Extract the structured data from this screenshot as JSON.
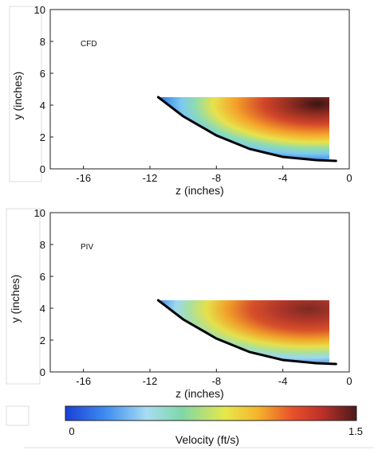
{
  "chart_data": [
    {
      "type": "heatmap",
      "panel_label": "CFD",
      "xlabel": "z (inches)",
      "ylabel": "y (inches)",
      "xlim": [
        -18,
        0
      ],
      "ylim": [
        0,
        10
      ],
      "xticks": [
        -16,
        -12,
        -8,
        -4,
        0
      ],
      "yticks": [
        0,
        2,
        4,
        6,
        8,
        10
      ],
      "grid": false,
      "wall_curve": {
        "z": [
          -11.5,
          -10.0,
          -8.0,
          -6.0,
          -4.0,
          -2.0,
          -0.8
        ],
        "y": [
          4.5,
          3.3,
          2.1,
          1.25,
          0.75,
          0.55,
          0.5
        ]
      },
      "field_top_y": 4.5,
      "field_right_z": -1.2
    },
    {
      "type": "heatmap",
      "panel_label": "PIV",
      "xlabel": "z (inches)",
      "ylabel": "y (inches)",
      "xlim": [
        -18,
        0
      ],
      "ylim": [
        0,
        10
      ],
      "xticks": [
        -16,
        -12,
        -8,
        -4,
        0
      ],
      "yticks": [
        0,
        2,
        4,
        6,
        8,
        10
      ],
      "grid": false,
      "wall_curve": {
        "z": [
          -11.5,
          -10.0,
          -8.0,
          -6.0,
          -4.0,
          -2.0,
          -0.8
        ],
        "y": [
          4.5,
          3.3,
          2.1,
          1.25,
          0.75,
          0.55,
          0.5
        ]
      },
      "field_top_y": 4.5,
      "field_right_z": -1.2
    }
  ],
  "colorbar": {
    "label": "Velocity (ft/s)",
    "min": 0,
    "max": 1.5,
    "tick_labels": [
      "0",
      "1.5"
    ],
    "colors": [
      "#1a3fd6",
      "#3f8ef0",
      "#a8dcf2",
      "#7fd8a8",
      "#e8e84a",
      "#f5b52a",
      "#e8502a",
      "#c0302a",
      "#4a1a1a"
    ]
  }
}
